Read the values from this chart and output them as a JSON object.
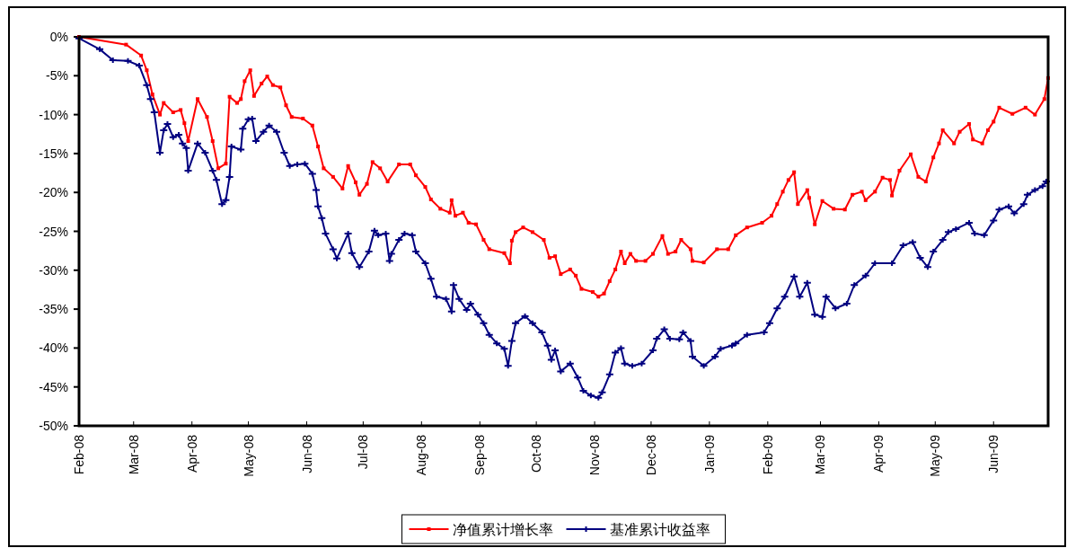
{
  "chart_data": {
    "type": "line",
    "xlim": [
      "2008-02-01",
      "2009-06-30"
    ],
    "xticks": [
      {
        "value": "2008-02-01",
        "label": "Feb-08"
      },
      {
        "value": "2008-03-01",
        "label": "Mar-08"
      },
      {
        "value": "2008-04-01",
        "label": "Apr-08"
      },
      {
        "value": "2008-05-01",
        "label": "May-08"
      },
      {
        "value": "2008-06-01",
        "label": "Jun-08"
      },
      {
        "value": "2008-07-01",
        "label": "Jul-08"
      },
      {
        "value": "2008-08-01",
        "label": "Aug-08"
      },
      {
        "value": "2008-09-01",
        "label": "Sep-08"
      },
      {
        "value": "2008-10-01",
        "label": "Oct-08"
      },
      {
        "value": "2008-11-01",
        "label": "Nov-08"
      },
      {
        "value": "2008-12-01",
        "label": "Dec-08"
      },
      {
        "value": "2009-01-01",
        "label": "Jan-09"
      },
      {
        "value": "2009-02-01",
        "label": "Feb-09"
      },
      {
        "value": "2009-03-01",
        "label": "Mar-09"
      },
      {
        "value": "2009-04-01",
        "label": "Apr-09"
      },
      {
        "value": "2009-05-01",
        "label": "May-09"
      },
      {
        "value": "2009-06-01",
        "label": "Jun-09"
      }
    ],
    "ylim": [
      -50,
      0
    ],
    "yticks": [
      {
        "value": 0,
        "label": "0%"
      },
      {
        "value": -5,
        "label": "-5%"
      },
      {
        "value": -10,
        "label": "-10%"
      },
      {
        "value": -15,
        "label": "-15%"
      },
      {
        "value": -20,
        "label": "-20%"
      },
      {
        "value": -25,
        "label": "-25%"
      },
      {
        "value": -30,
        "label": "-30%"
      },
      {
        "value": -35,
        "label": "-35%"
      },
      {
        "value": -40,
        "label": "-40%"
      },
      {
        "value": -45,
        "label": "-45%"
      },
      {
        "value": -50,
        "label": "-50%"
      }
    ],
    "grid": false,
    "legend": "bottom",
    "line_style": "solid",
    "series": [
      {
        "name": "净值累计增长率",
        "color": "#ff0000",
        "marker": "square",
        "x": [
          "2008-02-01",
          "2008-02-26",
          "2008-03-05",
          "2008-03-08",
          "2008-03-11",
          "2008-03-15",
          "2008-03-17",
          "2008-03-22",
          "2008-03-26",
          "2008-03-28",
          "2008-03-30",
          "2008-04-04",
          "2008-04-09",
          "2008-04-12",
          "2008-04-15",
          "2008-04-19",
          "2008-04-21",
          "2008-04-25",
          "2008-04-27",
          "2008-04-29",
          "2008-05-02",
          "2008-05-04",
          "2008-05-08",
          "2008-05-11",
          "2008-05-14",
          "2008-05-18",
          "2008-05-21",
          "2008-05-24",
          "2008-05-30",
          "2008-06-04",
          "2008-06-07",
          "2008-06-10",
          "2008-06-15",
          "2008-06-20",
          "2008-06-23",
          "2008-06-27",
          "2008-06-29",
          "2008-07-03",
          "2008-07-06",
          "2008-07-10",
          "2008-07-14",
          "2008-07-20",
          "2008-07-26",
          "2008-07-29",
          "2008-08-03",
          "2008-08-06",
          "2008-08-11",
          "2008-08-16",
          "2008-08-17",
          "2008-08-19",
          "2008-08-23",
          "2008-08-26",
          "2008-08-30",
          "2008-09-03",
          "2008-09-06",
          "2008-09-14",
          "2008-09-17",
          "2008-09-18",
          "2008-09-20",
          "2008-09-24",
          "2008-09-29",
          "2008-10-05",
          "2008-10-08",
          "2008-10-11",
          "2008-10-14",
          "2008-10-19",
          "2008-10-22",
          "2008-10-25",
          "2008-10-31",
          "2008-11-03",
          "2008-11-06",
          "2008-11-09",
          "2008-11-12",
          "2008-11-15",
          "2008-11-17",
          "2008-11-20",
          "2008-11-23",
          "2008-11-28",
          "2008-12-02",
          "2008-12-07",
          "2008-12-10",
          "2008-12-14",
          "2008-12-17",
          "2008-12-22",
          "2008-12-23",
          "2008-12-29",
          "2009-01-05",
          "2009-01-11",
          "2009-01-15",
          "2009-01-21",
          "2009-01-29",
          "2009-02-03",
          "2009-02-06",
          "2009-02-09",
          "2009-02-12",
          "2009-02-15",
          "2009-02-17",
          "2009-02-22",
          "2009-02-23",
          "2009-02-26",
          "2009-03-02",
          "2009-03-08",
          "2009-03-14",
          "2009-03-18",
          "2009-03-23",
          "2009-03-25",
          "2009-03-30",
          "2009-04-03",
          "2009-04-07",
          "2009-04-08",
          "2009-04-12",
          "2009-04-18",
          "2009-04-22",
          "2009-04-26",
          "2009-04-30",
          "2009-05-03",
          "2009-05-05",
          "2009-05-11",
          "2009-05-14",
          "2009-05-19",
          "2009-05-21",
          "2009-05-26",
          "2009-05-29",
          "2009-06-01",
          "2009-06-04",
          "2009-06-11",
          "2009-06-18",
          "2009-06-23",
          "2009-06-28",
          "2009-06-30"
        ],
        "values": [
          0,
          -1.0,
          -2.4,
          -4.3,
          -7.4,
          -10.0,
          -8.5,
          -9.7,
          -9.4,
          -11.1,
          -13.4,
          -8.0,
          -10.3,
          -13.4,
          -16.9,
          -16.3,
          -7.7,
          -8.5,
          -8.0,
          -5.7,
          -4.3,
          -7.6,
          -6.0,
          -5.1,
          -6.2,
          -6.5,
          -8.8,
          -10.3,
          -10.5,
          -11.4,
          -14.1,
          -16.9,
          -18.0,
          -19.5,
          -16.6,
          -18.7,
          -20.3,
          -18.9,
          -16.1,
          -16.9,
          -18.6,
          -16.4,
          -16.4,
          -17.8,
          -19.3,
          -20.9,
          -22.1,
          -22.6,
          -21.0,
          -23.0,
          -22.6,
          -23.9,
          -24.1,
          -26.1,
          -27.3,
          -27.8,
          -29.1,
          -26.2,
          -25.1,
          -24.5,
          -25.1,
          -26.1,
          -28.4,
          -28.2,
          -30.5,
          -29.9,
          -30.7,
          -32.4,
          -32.8,
          -33.4,
          -33.0,
          -31.4,
          -29.9,
          -27.6,
          -29.1,
          -27.9,
          -28.8,
          -28.8,
          -27.9,
          -25.6,
          -27.9,
          -27.6,
          -26.1,
          -27.3,
          -28.8,
          -29.0,
          -27.3,
          -27.3,
          -25.5,
          -24.5,
          -23.9,
          -23.0,
          -21.5,
          -19.9,
          -18.4,
          -17.4,
          -21.5,
          -19.7,
          -20.7,
          -24.1,
          -21.1,
          -22.1,
          -22.2,
          -20.3,
          -19.9,
          -21.0,
          -19.9,
          -18.1,
          -18.4,
          -20.4,
          -17.2,
          -15.1,
          -18.0,
          -18.6,
          -15.5,
          -13.7,
          -12.0,
          -13.7,
          -12.2,
          -11.2,
          -13.2,
          -13.7,
          -12.0,
          -10.9,
          -9.1,
          -9.9,
          -9.1,
          -10.0,
          -8.0,
          -5.3
        ]
      },
      {
        "name": "基准累计收益率",
        "color": "#000080",
        "marker": "cross",
        "x": [
          "2008-02-01",
          "2008-02-12",
          "2008-02-19",
          "2008-02-27",
          "2008-03-04",
          "2008-03-08",
          "2008-03-10",
          "2008-03-12",
          "2008-03-15",
          "2008-03-17",
          "2008-03-19",
          "2008-03-22",
          "2008-03-25",
          "2008-03-27",
          "2008-03-29",
          "2008-03-30",
          "2008-04-04",
          "2008-04-08",
          "2008-04-12",
          "2008-04-14",
          "2008-04-17",
          "2008-04-19",
          "2008-04-21",
          "2008-04-22",
          "2008-04-27",
          "2008-04-28",
          "2008-05-01",
          "2008-05-03",
          "2008-05-05",
          "2008-05-09",
          "2008-05-12",
          "2008-05-16",
          "2008-05-20",
          "2008-05-23",
          "2008-05-27",
          "2008-05-31",
          "2008-06-04",
          "2008-06-06",
          "2008-06-07",
          "2008-06-09",
          "2008-06-11",
          "2008-06-15",
          "2008-06-17",
          "2008-06-23",
          "2008-06-25",
          "2008-06-29",
          "2008-07-04",
          "2008-07-07",
          "2008-07-09",
          "2008-07-13",
          "2008-07-15",
          "2008-07-16",
          "2008-07-20",
          "2008-07-23",
          "2008-07-27",
          "2008-07-29",
          "2008-08-03",
          "2008-08-06",
          "2008-08-09",
          "2008-08-14",
          "2008-08-17",
          "2008-08-18",
          "2008-08-21",
          "2008-08-25",
          "2008-08-27",
          "2008-08-31",
          "2008-09-03",
          "2008-09-06",
          "2008-09-10",
          "2008-09-14",
          "2008-09-16",
          "2008-09-18",
          "2008-09-20",
          "2008-09-25",
          "2008-09-29",
          "2008-10-04",
          "2008-10-07",
          "2008-10-09",
          "2008-10-11",
          "2008-10-14",
          "2008-10-19",
          "2008-10-23",
          "2008-10-26",
          "2008-10-30",
          "2008-11-03",
          "2008-11-05",
          "2008-11-09",
          "2008-11-12",
          "2008-11-15",
          "2008-11-17",
          "2008-11-21",
          "2008-11-26",
          "2008-12-02",
          "2008-12-04",
          "2008-12-08",
          "2008-12-11",
          "2008-12-16",
          "2008-12-18",
          "2008-12-22",
          "2008-12-23",
          "2008-12-29",
          "2009-01-04",
          "2009-01-07",
          "2009-01-13",
          "2009-01-15",
          "2009-01-21",
          "2009-01-30",
          "2009-02-02",
          "2009-02-06",
          "2009-02-10",
          "2009-02-15",
          "2009-02-18",
          "2009-02-22",
          "2009-02-26",
          "2009-03-02",
          "2009-03-04",
          "2009-03-09",
          "2009-03-15",
          "2009-03-19",
          "2009-03-25",
          "2009-03-30",
          "2009-04-08",
          "2009-04-14",
          "2009-04-19",
          "2009-04-23",
          "2009-04-27",
          "2009-04-30",
          "2009-05-05",
          "2009-05-08",
          "2009-05-12",
          "2009-05-19",
          "2009-05-22",
          "2009-05-27",
          "2009-06-01",
          "2009-06-04",
          "2009-06-09",
          "2009-06-12",
          "2009-06-17",
          "2009-06-19",
          "2009-06-23",
          "2009-06-27",
          "2009-06-29"
        ],
        "values": [
          -0.2,
          -1.6,
          -3.0,
          -3.1,
          -3.7,
          -6.2,
          -8.0,
          -9.7,
          -14.9,
          -12.0,
          -11.2,
          -12.9,
          -12.6,
          -13.7,
          -14.3,
          -17.2,
          -13.7,
          -14.9,
          -17.2,
          -18.4,
          -21.5,
          -21.0,
          -18.0,
          -14.1,
          -14.5,
          -11.8,
          -10.6,
          -10.5,
          -13.4,
          -12.2,
          -11.4,
          -12.2,
          -14.9,
          -16.6,
          -16.4,
          -16.3,
          -17.6,
          -19.7,
          -21.8,
          -23.3,
          -25.3,
          -27.3,
          -28.5,
          -25.3,
          -27.8,
          -29.6,
          -27.6,
          -24.9,
          -25.5,
          -25.3,
          -28.8,
          -27.9,
          -26.1,
          -25.3,
          -25.5,
          -27.6,
          -29.1,
          -31.1,
          -33.4,
          -33.7,
          -35.3,
          -31.9,
          -33.7,
          -35.1,
          -34.3,
          -35.7,
          -36.8,
          -38.3,
          -39.4,
          -40.1,
          -42.3,
          -39.1,
          -36.8,
          -35.9,
          -36.8,
          -38.0,
          -39.7,
          -41.5,
          -40.3,
          -43.0,
          -42.0,
          -43.8,
          -45.5,
          -46.1,
          -46.4,
          -45.7,
          -43.4,
          -40.6,
          -40.0,
          -42.0,
          -42.3,
          -42.0,
          -40.3,
          -38.8,
          -37.6,
          -38.8,
          -38.9,
          -38.0,
          -39.1,
          -41.1,
          -42.3,
          -41.1,
          -40.1,
          -39.7,
          -39.4,
          -38.3,
          -38.0,
          -36.8,
          -34.9,
          -33.4,
          -30.8,
          -33.4,
          -31.6,
          -35.7,
          -36.0,
          -33.4,
          -34.9,
          -34.3,
          -31.9,
          -30.7,
          -29.1,
          -29.1,
          -26.8,
          -26.4,
          -28.4,
          -29.6,
          -27.6,
          -26.1,
          -25.1,
          -24.7,
          -23.9,
          -25.3,
          -25.5,
          -23.6,
          -22.2,
          -21.8,
          -22.7,
          -21.5,
          -20.3,
          -19.7,
          -19.2,
          -18.6
        ]
      }
    ]
  }
}
